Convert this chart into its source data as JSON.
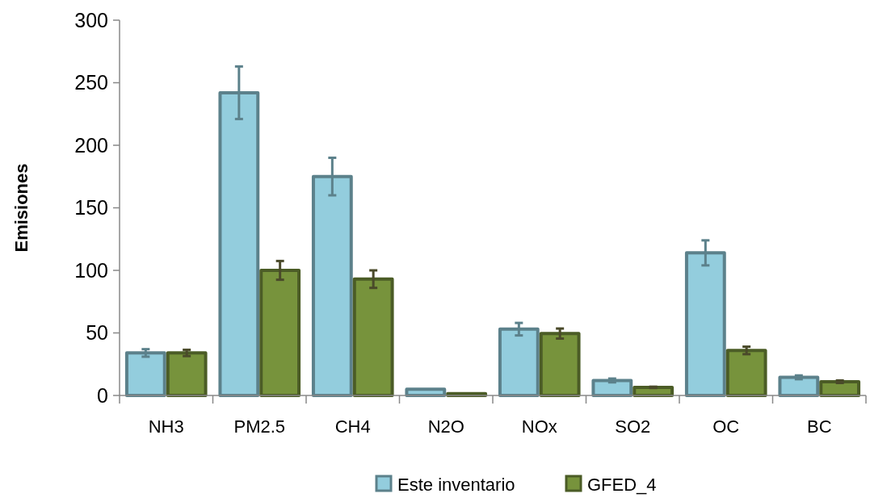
{
  "chart_data": {
    "type": "bar",
    "ylabel": "Emisiones",
    "categories": [
      "NH3",
      "PM2.5",
      "CH4",
      "N2O",
      "NOx",
      "SO2",
      "OC",
      "BC"
    ],
    "series": [
      {
        "name": "Este inventario",
        "color": "#93cddd",
        "values": [
          34,
          242,
          175,
          5,
          53,
          12,
          114,
          14.5
        ],
        "errors": [
          3,
          21,
          15,
          null,
          5,
          1.5,
          10,
          1.5
        ]
      },
      {
        "name": "GFED_4",
        "color": "#77933c",
        "values": [
          34,
          100,
          93,
          1.5,
          49.5,
          6.5,
          36,
          11
        ],
        "errors": [
          2.5,
          7.5,
          7,
          null,
          4,
          0.5,
          3,
          1
        ]
      }
    ],
    "ylim": [
      0,
      300
    ],
    "yticks": [
      0,
      50,
      100,
      150,
      200,
      250,
      300
    ],
    "grid": false,
    "legend": "bottom"
  }
}
